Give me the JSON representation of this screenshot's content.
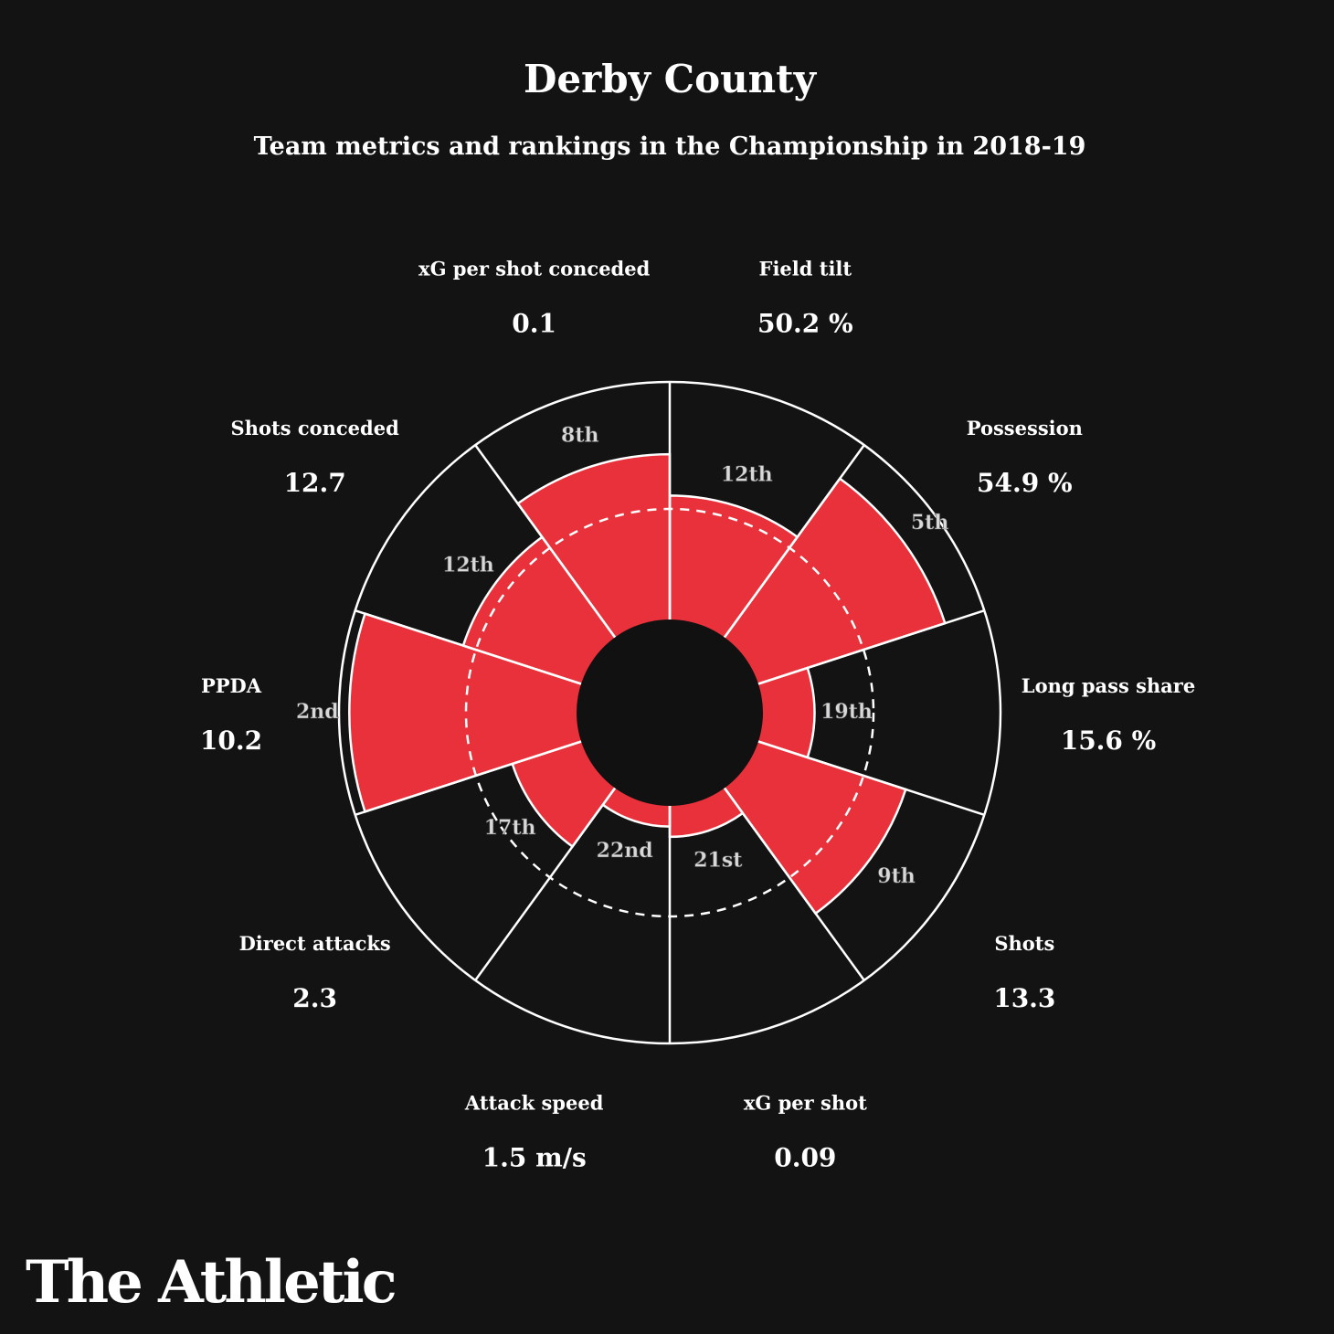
{
  "chart_data": {
    "type": "polar-bar",
    "title": "Derby County",
    "subtitle": "Team metrics and rankings in the Championship in 2018-19",
    "rank_scale": {
      "best": 1,
      "worst": 24
    },
    "median_ring": true,
    "colors": {
      "bar": "#e8313b",
      "background": "#131313",
      "lines": "#ffffff"
    },
    "metrics": [
      {
        "label": "Field tilt",
        "value": "50.2 %",
        "rank": 12,
        "rank_label": "12th"
      },
      {
        "label": "Possession",
        "value": "54.9 %",
        "rank": 5,
        "rank_label": "5th"
      },
      {
        "label": "Long pass share",
        "value": "15.6 %",
        "rank": 19,
        "rank_label": "19th"
      },
      {
        "label": "Shots",
        "value": "13.3",
        "rank": 9,
        "rank_label": "9th"
      },
      {
        "label": "xG per shot",
        "value": "0.09",
        "rank": 21,
        "rank_label": "21st"
      },
      {
        "label": "Attack speed",
        "value": "1.5 m/s",
        "rank": 22,
        "rank_label": "22nd"
      },
      {
        "label": "Direct attacks",
        "value": "2.3",
        "rank": 17,
        "rank_label": "17th"
      },
      {
        "label": "PPDA",
        "value": "10.2",
        "rank": 2,
        "rank_label": "2nd"
      },
      {
        "label": "Shots conceded",
        "value": "12.7",
        "rank": 12,
        "rank_label": "12th"
      },
      {
        "label": "xG per shot conceded",
        "value": "0.1",
        "rank": 8,
        "rank_label": "8th"
      }
    ]
  },
  "logo": "The Athletic"
}
